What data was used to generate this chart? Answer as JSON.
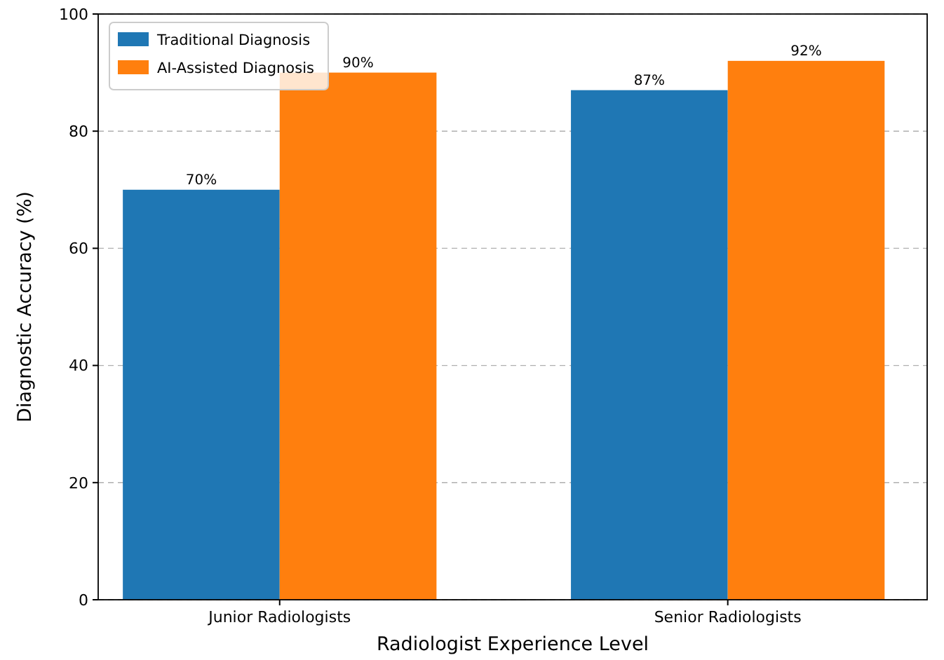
{
  "chart_data": {
    "type": "bar",
    "xlabel": "Radiologist Experience Level",
    "ylabel": "Diagnostic Accuracy (%)",
    "categories": [
      "Junior Radiologists",
      "Senior Radiologists"
    ],
    "series": [
      {
        "name": "Traditional Diagnosis",
        "color": "#1f77b4",
        "values": [
          70,
          87
        ],
        "value_labels": [
          "70%",
          "87%"
        ]
      },
      {
        "name": "AI-Assisted Diagnosis",
        "color": "#ff7f0e",
        "values": [
          90,
          92
        ],
        "value_labels": [
          "90%",
          "92%"
        ]
      }
    ],
    "ylim": [
      0,
      100
    ],
    "yticks": [
      0,
      20,
      40,
      60,
      80,
      100
    ],
    "grid": "y",
    "legend": "top left"
  }
}
